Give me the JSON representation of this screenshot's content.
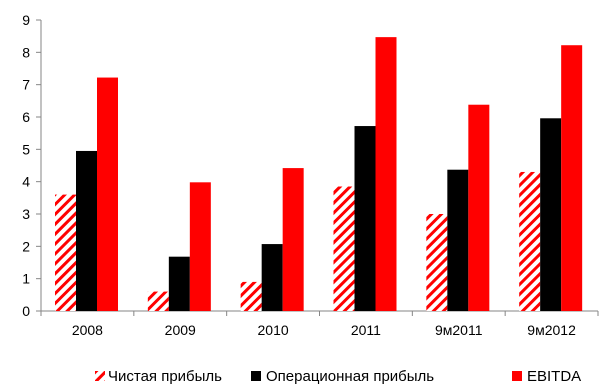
{
  "chart_data": {
    "type": "bar",
    "categories": [
      "2008",
      "2009",
      "2010",
      "2011",
      "9м2011",
      "9м2012"
    ],
    "series": [
      {
        "name": "Чистая прибыль",
        "values": [
          3.6,
          0.6,
          0.9,
          3.85,
          3.0,
          4.3
        ],
        "color": "#ff0000",
        "pattern": "hatch"
      },
      {
        "name": "Операционная прибыль",
        "values": [
          4.95,
          1.68,
          2.07,
          5.72,
          4.37,
          5.96
        ],
        "color": "#000000",
        "pattern": "solid"
      },
      {
        "name": "EBITDA",
        "values": [
          7.22,
          3.98,
          4.42,
          8.47,
          6.38,
          8.22
        ],
        "color": "#ff0000",
        "pattern": "solid"
      }
    ],
    "title": "",
    "xlabel": "",
    "ylabel": "",
    "ylim": [
      0,
      9
    ],
    "yticks": [
      "0",
      "1",
      "2",
      "3",
      "4",
      "5",
      "6",
      "7",
      "8",
      "9"
    ],
    "grid": false,
    "legend": "bottom"
  }
}
